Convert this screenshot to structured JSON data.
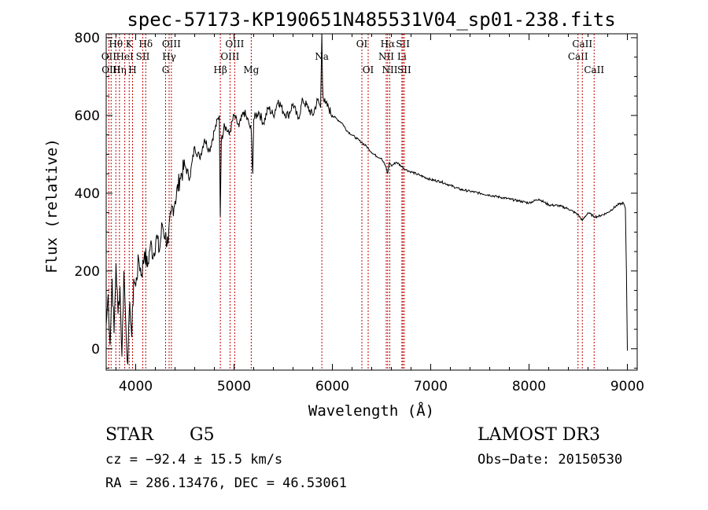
{
  "chart_data": {
    "type": "line",
    "title": "spec-57173-KP190651N485531V04_sp01-238.fits",
    "xlabel": "Wavelength (Å)",
    "ylabel": "Flux (relative)",
    "xlim": [
      3700,
      9100
    ],
    "ylim": [
      -55,
      810
    ],
    "xticks": [
      4000,
      5000,
      6000,
      7000,
      8000,
      9000
    ],
    "xtick_labels": [
      "4000",
      "5000",
      "6000",
      "7000",
      "8000",
      "9000"
    ],
    "yticks": [
      0,
      200,
      400,
      600,
      800
    ],
    "ytick_labels": [
      "0",
      "200",
      "400",
      "600",
      "800"
    ],
    "grid": false,
    "series": [
      {
        "name": "flux",
        "x": [
          3700,
          3720,
          3740,
          3760,
          3780,
          3800,
          3820,
          3840,
          3860,
          3880,
          3900,
          3920,
          3940,
          3960,
          3980,
          4000,
          4030,
          4060,
          4090,
          4120,
          4150,
          4180,
          4210,
          4240,
          4270,
          4300,
          4330,
          4360,
          4400,
          4450,
          4500,
          4550,
          4600,
          4650,
          4700,
          4750,
          4800,
          4850,
          4860,
          4870,
          4900,
          4950,
          5000,
          5050,
          5100,
          5150,
          5175,
          5190,
          5200,
          5250,
          5300,
          5350,
          5400,
          5450,
          5500,
          5550,
          5600,
          5650,
          5700,
          5750,
          5800,
          5850,
          5880,
          5893,
          5900,
          5910,
          5930,
          5960,
          6000,
          6050,
          6100,
          6150,
          6200,
          6250,
          6300,
          6350,
          6400,
          6450,
          6500,
          6540,
          6563,
          6580,
          6600,
          6650,
          6700,
          6750,
          6800,
          6900,
          7000,
          7100,
          7200,
          7300,
          7400,
          7500,
          7600,
          7700,
          7800,
          7900,
          8000,
          8100,
          8200,
          8300,
          8400,
          8498,
          8542,
          8600,
          8662,
          8700,
          8800,
          8900,
          8960,
          8980,
          8990,
          9000
        ],
        "values": [
          60,
          140,
          10,
          180,
          40,
          220,
          90,
          160,
          -20,
          200,
          60,
          -40,
          120,
          30,
          180,
          160,
          230,
          190,
          250,
          210,
          270,
          240,
          290,
          250,
          320,
          290,
          270,
          350,
          380,
          440,
          470,
          440,
          520,
          490,
          540,
          510,
          560,
          600,
          340,
          530,
          580,
          550,
          600,
          570,
          610,
          580,
          560,
          450,
          590,
          610,
          580,
          620,
          600,
          640,
          610,
          600,
          630,
          590,
          640,
          620,
          600,
          640,
          620,
          810,
          680,
          640,
          630,
          620,
          600,
          590,
          580,
          560,
          550,
          540,
          530,
          520,
          505,
          495,
          490,
          470,
          450,
          480,
          470,
          480,
          470,
          460,
          455,
          445,
          435,
          430,
          420,
          410,
          405,
          400,
          395,
          390,
          385,
          380,
          375,
          385,
          370,
          368,
          360,
          345,
          330,
          350,
          340,
          340,
          350,
          370,
          375,
          360,
          200,
          -5
        ]
      }
    ],
    "line_markers": [
      {
        "wl": 3727,
        "label": "OII",
        "row": 2
      },
      {
        "wl": 3750,
        "label": "OIII",
        "row": 3
      },
      {
        "wl": 3798,
        "label": "Hθ",
        "row": 1
      },
      {
        "wl": 3835,
        "label": "Hη",
        "row": 3
      },
      {
        "wl": 3889,
        "label": "HeI",
        "row": 2
      },
      {
        "wl": 3934,
        "label": "K",
        "row": 1
      },
      {
        "wl": 3968,
        "label": "H",
        "row": 3
      },
      {
        "wl": 4072,
        "label": "SII",
        "row": 2
      },
      {
        "wl": 4102,
        "label": "Hδ",
        "row": 1
      },
      {
        "wl": 4304,
        "label": "G",
        "row": 3
      },
      {
        "wl": 4340,
        "label": "Hγ",
        "row": 2
      },
      {
        "wl": 4363,
        "label": "OIII",
        "row": 1
      },
      {
        "wl": 4861,
        "label": "Hβ",
        "row": 3
      },
      {
        "wl": 4959,
        "label": "OIII",
        "row": 2
      },
      {
        "wl": 5007,
        "label": "OIII",
        "row": 1
      },
      {
        "wl": 5175,
        "label": "Mg",
        "row": 3
      },
      {
        "wl": 5893,
        "label": "Na",
        "row": 2
      },
      {
        "wl": 6300,
        "label": "OI",
        "row": 1
      },
      {
        "wl": 6364,
        "label": "OI",
        "row": 3
      },
      {
        "wl": 6548,
        "label": "NII",
        "row": 2
      },
      {
        "wl": 6563,
        "label": "Hα",
        "row": 1
      },
      {
        "wl": 6584,
        "label": "NII",
        "row": 3
      },
      {
        "wl": 6707,
        "label": "Li",
        "row": 2
      },
      {
        "wl": 6717,
        "label": "SII",
        "row": 1
      },
      {
        "wl": 6731,
        "label": "SII",
        "row": 3
      },
      {
        "wl": 8498,
        "label": "CaII",
        "row": 2
      },
      {
        "wl": 8542,
        "label": "CaII",
        "row": 1
      },
      {
        "wl": 8662,
        "label": "CaII",
        "row": 3
      }
    ]
  },
  "info": {
    "class": "STAR",
    "subclass": "G5",
    "survey": "LAMOST DR3",
    "cz": "cz = −92.4 ± 15.5 km/s",
    "obs_date": "Obs−Date: 20150530",
    "coords": "RA = 286.13476, DEC =  46.53061"
  },
  "colors": {
    "marker": "#c00000",
    "spectrum": "#000000"
  }
}
